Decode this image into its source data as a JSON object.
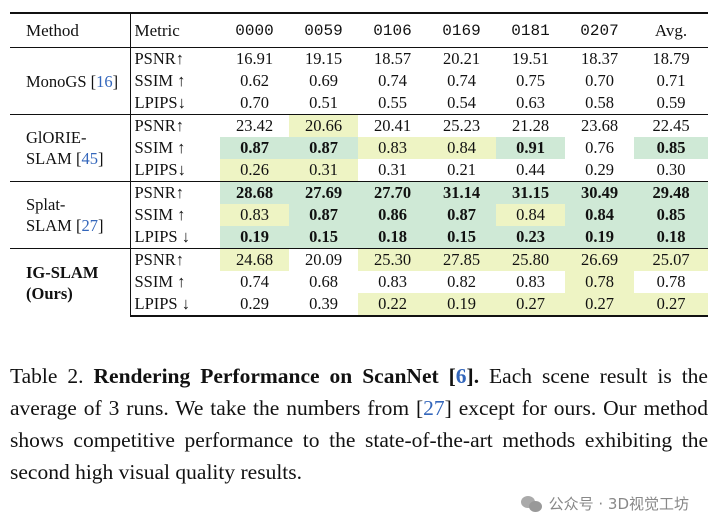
{
  "table": {
    "headers": [
      "Method",
      "Metric",
      "0000",
      "0059",
      "0106",
      "0169",
      "0181",
      "0207",
      "Avg."
    ],
    "groups": [
      {
        "method_lines": [
          "MonoGS"
        ],
        "cite": "16",
        "rows": [
          {
            "metric": "PSNR↑",
            "cells": [
              {
                "v": "16.91"
              },
              {
                "v": "19.15"
              },
              {
                "v": "18.57"
              },
              {
                "v": "20.21"
              },
              {
                "v": "19.51"
              },
              {
                "v": "18.37"
              },
              {
                "v": "18.79"
              }
            ]
          },
          {
            "metric": "SSIM ↑",
            "cells": [
              {
                "v": "0.62"
              },
              {
                "v": "0.69"
              },
              {
                "v": "0.74"
              },
              {
                "v": "0.74"
              },
              {
                "v": "0.75"
              },
              {
                "v": "0.70"
              },
              {
                "v": "0.71"
              }
            ]
          },
          {
            "metric": "LPIPS↓",
            "cells": [
              {
                "v": "0.70"
              },
              {
                "v": "0.51"
              },
              {
                "v": "0.55"
              },
              {
                "v": "0.54"
              },
              {
                "v": "0.63"
              },
              {
                "v": "0.58"
              },
              {
                "v": "0.59"
              }
            ]
          }
        ]
      },
      {
        "method_lines": [
          "GlORIE-",
          "SLAM"
        ],
        "cite": "45",
        "rows": [
          {
            "metric": "PSNR↑",
            "cells": [
              {
                "v": "23.42"
              },
              {
                "v": "20.66",
                "hl": "y"
              },
              {
                "v": "20.41"
              },
              {
                "v": "25.23"
              },
              {
                "v": "21.28"
              },
              {
                "v": "23.68"
              },
              {
                "v": "22.45"
              }
            ]
          },
          {
            "metric": "SSIM ↑",
            "cells": [
              {
                "v": "0.87",
                "hl": "g",
                "bold": true
              },
              {
                "v": "0.87",
                "hl": "g",
                "bold": true
              },
              {
                "v": "0.83",
                "hl": "y"
              },
              {
                "v": "0.84",
                "hl": "y"
              },
              {
                "v": "0.91",
                "hl": "g",
                "bold": true
              },
              {
                "v": "0.76"
              },
              {
                "v": "0.85",
                "hl": "g",
                "bold": true
              }
            ]
          },
          {
            "metric": "LPIPS↓",
            "cells": [
              {
                "v": "0.26",
                "hl": "y"
              },
              {
                "v": "0.31",
                "hl": "y"
              },
              {
                "v": "0.31"
              },
              {
                "v": "0.21"
              },
              {
                "v": "0.44"
              },
              {
                "v": "0.29"
              },
              {
                "v": "0.30"
              }
            ]
          }
        ]
      },
      {
        "method_lines": [
          "Splat-",
          "SLAM"
        ],
        "cite": "27",
        "rows": [
          {
            "metric": "PSNR↑",
            "cells": [
              {
                "v": "28.68",
                "hl": "g",
                "bold": true
              },
              {
                "v": "27.69",
                "hl": "g",
                "bold": true
              },
              {
                "v": "27.70",
                "hl": "g",
                "bold": true
              },
              {
                "v": "31.14",
                "hl": "g",
                "bold": true
              },
              {
                "v": "31.15",
                "hl": "g",
                "bold": true
              },
              {
                "v": "30.49",
                "hl": "g",
                "bold": true
              },
              {
                "v": "29.48",
                "hl": "g",
                "bold": true
              }
            ]
          },
          {
            "metric": "SSIM ↑",
            "cells": [
              {
                "v": "0.83",
                "hl": "y"
              },
              {
                "v": "0.87",
                "hl": "g",
                "bold": true
              },
              {
                "v": "0.86",
                "hl": "g",
                "bold": true
              },
              {
                "v": "0.87",
                "hl": "g",
                "bold": true
              },
              {
                "v": "0.84",
                "hl": "y"
              },
              {
                "v": "0.84",
                "hl": "g",
                "bold": true
              },
              {
                "v": "0.85",
                "hl": "g",
                "bold": true
              }
            ]
          },
          {
            "metric": "LPIPS ↓",
            "cells": [
              {
                "v": "0.19",
                "hl": "g",
                "bold": true
              },
              {
                "v": "0.15",
                "hl": "g",
                "bold": true
              },
              {
                "v": "0.18",
                "hl": "g",
                "bold": true
              },
              {
                "v": "0.15",
                "hl": "g",
                "bold": true
              },
              {
                "v": "0.23",
                "hl": "g",
                "bold": true
              },
              {
                "v": "0.19",
                "hl": "g",
                "bold": true
              },
              {
                "v": "0.18",
                "hl": "g",
                "bold": true
              }
            ]
          }
        ]
      },
      {
        "method_lines": [
          "IG-SLAM",
          "(Ours)"
        ],
        "cite": "",
        "bold_method": true,
        "rows": [
          {
            "metric": "PSNR↑",
            "cells": [
              {
                "v": "24.68",
                "hl": "y"
              },
              {
                "v": "20.09"
              },
              {
                "v": "25.30",
                "hl": "y"
              },
              {
                "v": "27.85",
                "hl": "y"
              },
              {
                "v": "25.80",
                "hl": "y"
              },
              {
                "v": "26.69",
                "hl": "y"
              },
              {
                "v": "25.07",
                "hl": "y"
              }
            ]
          },
          {
            "metric": "SSIM ↑",
            "cells": [
              {
                "v": "0.74"
              },
              {
                "v": "0.68"
              },
              {
                "v": "0.83"
              },
              {
                "v": "0.82"
              },
              {
                "v": "0.83"
              },
              {
                "v": "0.78",
                "hl": "y"
              },
              {
                "v": "0.78"
              }
            ]
          },
          {
            "metric": "LPIPS ↓",
            "cells": [
              {
                "v": "0.29"
              },
              {
                "v": "0.39"
              },
              {
                "v": "0.22",
                "hl": "y"
              },
              {
                "v": "0.19",
                "hl": "y"
              },
              {
                "v": "0.27",
                "hl": "y"
              },
              {
                "v": "0.27",
                "hl": "y"
              },
              {
                "v": "0.27",
                "hl": "y"
              }
            ]
          }
        ]
      }
    ]
  },
  "caption": {
    "label": "Table 2.",
    "title_pre": "Rendering Performance on ScanNet [",
    "title_cite": "6",
    "title_post": "].",
    "body_1": " Each scene result is the average of 3 runs.  We take the numbers from [",
    "body_cite": "27",
    "body_2": "] except for ours. Our method shows competitive performance to the state-of-the-art methods exhibiting the second high visual quality results."
  },
  "watermark": {
    "text": "公众号 · 3D视觉工坊"
  },
  "colors": {
    "best": "#cfe9d6",
    "second": "#eef4c4",
    "cite": "#3366bb"
  }
}
